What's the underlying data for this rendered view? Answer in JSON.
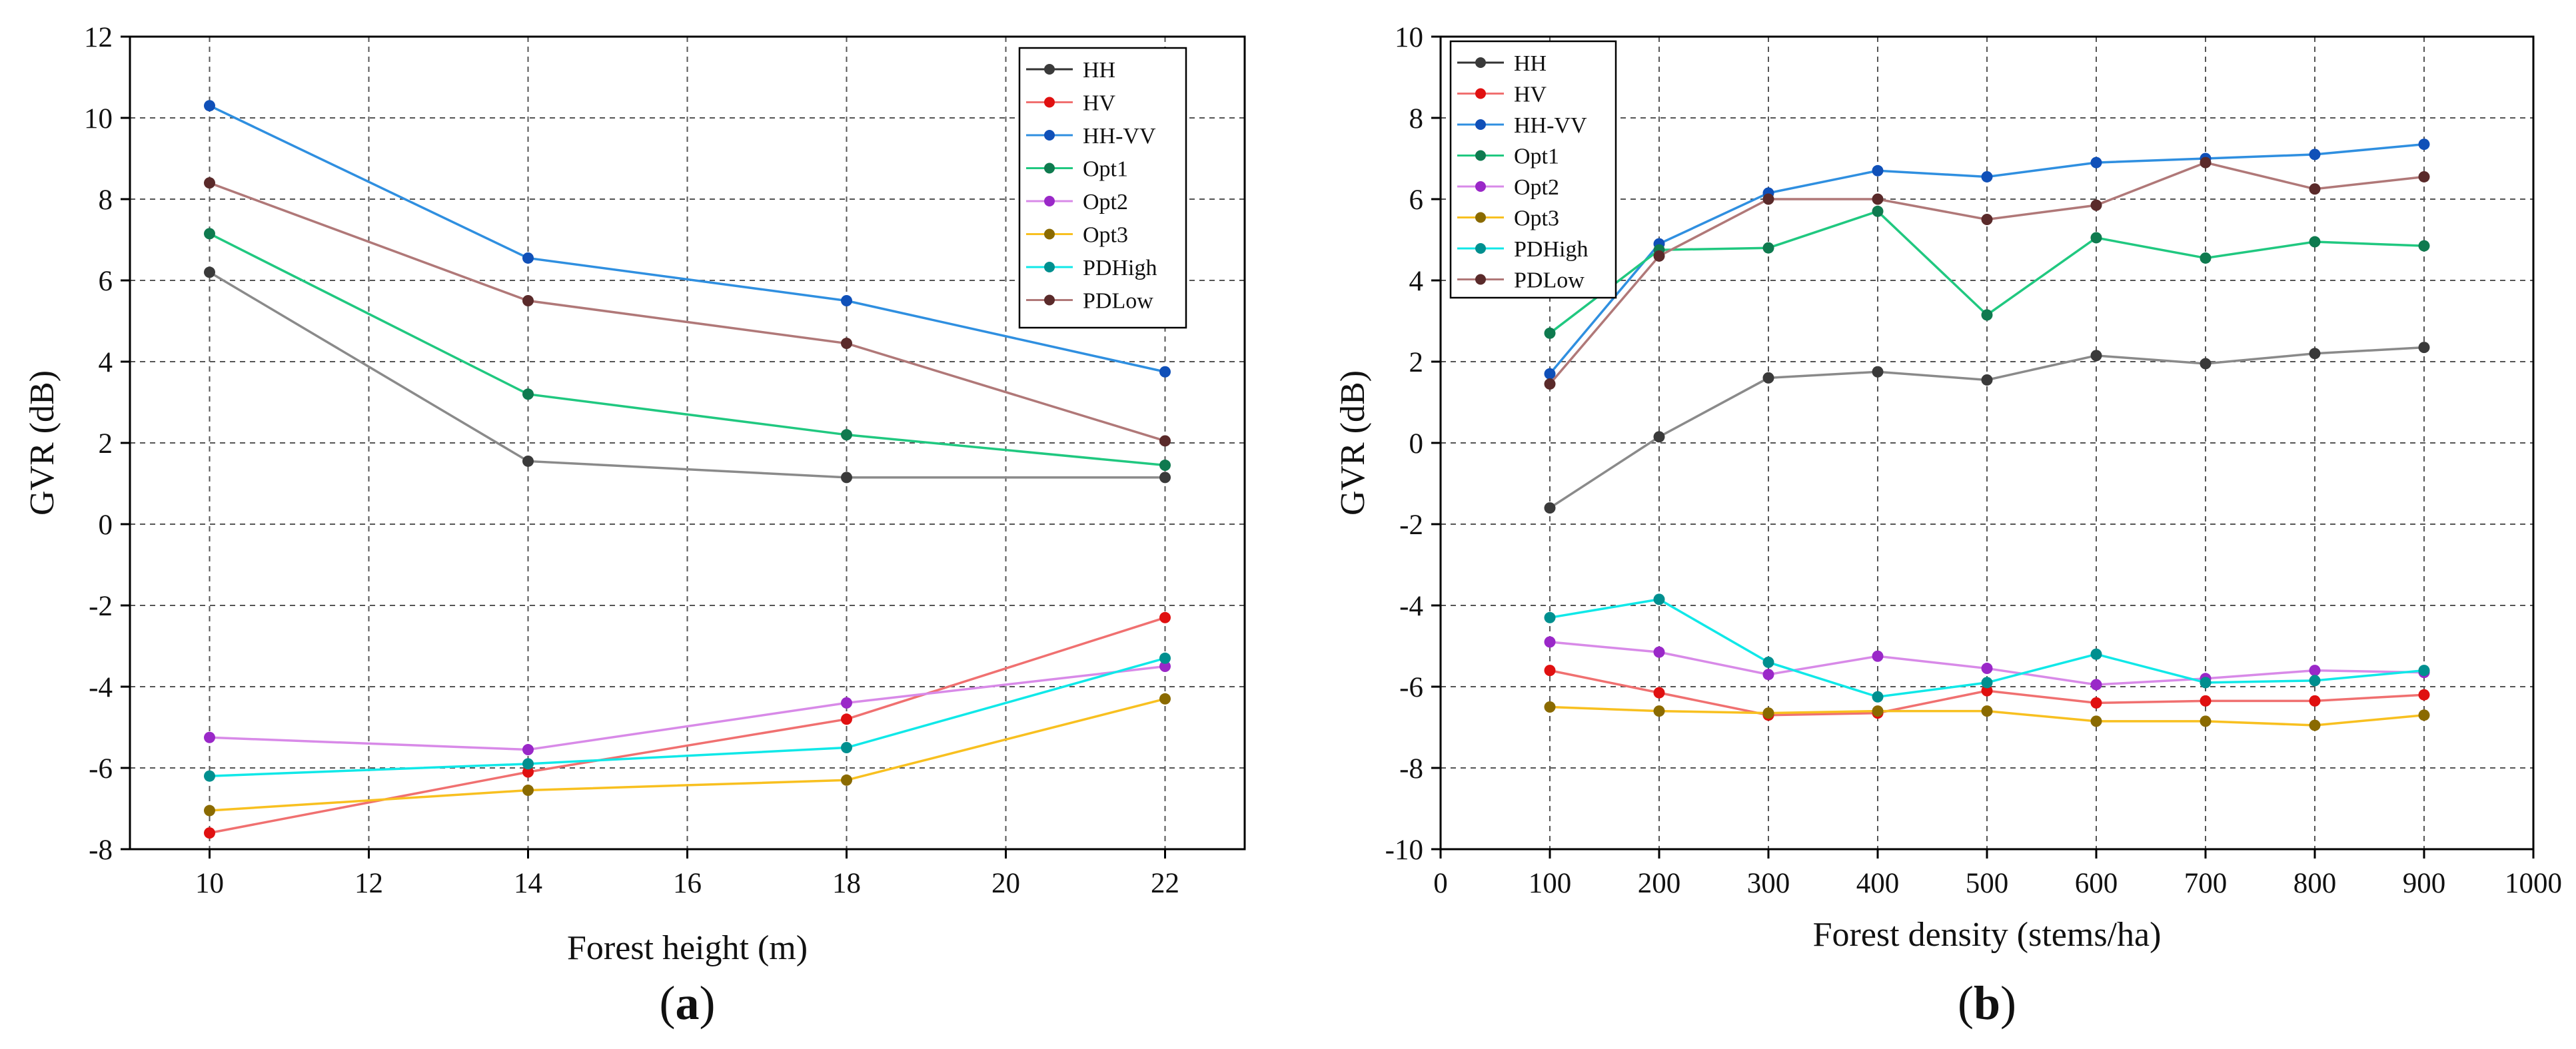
{
  "chart_data": [
    {
      "type": "line",
      "panel": "(a)",
      "panel_letter": "a",
      "xlabel": "Forest height (m)",
      "ylabel": "GVR (dB)",
      "xlim": [
        9,
        23
      ],
      "ylim": [
        -8,
        12
      ],
      "xticks": [
        10,
        12,
        14,
        16,
        18,
        20,
        22
      ],
      "yticks": [
        -8,
        -6,
        -4,
        -2,
        0,
        2,
        4,
        6,
        8,
        10,
        12
      ],
      "grid": true,
      "legend_position": "top-right",
      "x": [
        10,
        14,
        18,
        22
      ],
      "series": [
        {
          "name": "HH",
          "line_color": "#8a8a8a",
          "marker_color": "#3a3a3a",
          "values": [
            6.2,
            1.55,
            1.15,
            1.15
          ]
        },
        {
          "name": "HV",
          "line_color": "#f07070",
          "marker_color": "#e01010",
          "values": [
            -7.6,
            -6.1,
            -4.8,
            -2.3
          ]
        },
        {
          "name": "HH-VV",
          "line_color": "#2f8fe0",
          "marker_color": "#1050b8",
          "values": [
            10.3,
            6.55,
            5.5,
            3.75
          ]
        },
        {
          "name": "Opt1",
          "line_color": "#20c880",
          "marker_color": "#0f7a4f",
          "values": [
            7.15,
            3.2,
            2.2,
            1.45
          ]
        },
        {
          "name": "Opt2",
          "line_color": "#d88ae8",
          "marker_color": "#9a28c8",
          "values": [
            -5.25,
            -5.55,
            -4.4,
            -3.5
          ]
        },
        {
          "name": "Opt3",
          "line_color": "#f8c020",
          "marker_color": "#8a6a00",
          "values": [
            -7.05,
            -6.55,
            -6.3,
            -4.3
          ]
        },
        {
          "name": "PDHigh",
          "line_color": "#10e8e8",
          "marker_color": "#008f8f",
          "values": [
            -6.2,
            -5.9,
            -5.5,
            -3.3
          ]
        },
        {
          "name": "PDLow",
          "line_color": "#b07878",
          "marker_color": "#5a2a2a",
          "values": [
            8.4,
            5.5,
            4.45,
            2.05
          ]
        }
      ]
    },
    {
      "type": "line",
      "panel": "(b)",
      "panel_letter": "b",
      "xlabel": "Forest density (stems/ha)",
      "ylabel": "GVR (dB)",
      "xlim": [
        0,
        1000
      ],
      "ylim": [
        -10,
        10
      ],
      "xticks": [
        0,
        100,
        200,
        300,
        400,
        500,
        600,
        700,
        800,
        900,
        1000
      ],
      "yticks": [
        -10,
        -8,
        -6,
        -4,
        -2,
        0,
        2,
        4,
        6,
        8,
        10
      ],
      "grid": true,
      "legend_position": "top-left",
      "x": [
        100,
        200,
        300,
        400,
        500,
        600,
        700,
        800,
        900
      ],
      "series": [
        {
          "name": "HH",
          "line_color": "#8a8a8a",
          "marker_color": "#3a3a3a",
          "values": [
            -1.6,
            0.15,
            1.6,
            1.75,
            1.55,
            2.15,
            1.95,
            2.2,
            2.35
          ]
        },
        {
          "name": "HV",
          "line_color": "#f07070",
          "marker_color": "#e01010",
          "values": [
            -5.6,
            -6.15,
            -6.7,
            -6.65,
            -6.1,
            -6.4,
            -6.35,
            -6.35,
            -6.2
          ]
        },
        {
          "name": "HH-VV",
          "line_color": "#2f8fe0",
          "marker_color": "#1050b8",
          "values": [
            1.7,
            4.9,
            6.15,
            6.7,
            6.55,
            6.9,
            7.0,
            7.1,
            7.35
          ]
        },
        {
          "name": "Opt1",
          "line_color": "#20c880",
          "marker_color": "#0f7a4f",
          "values": [
            2.7,
            4.75,
            4.8,
            5.7,
            3.15,
            5.05,
            4.55,
            4.95,
            4.85
          ]
        },
        {
          "name": "Opt2",
          "line_color": "#d88ae8",
          "marker_color": "#9a28c8",
          "values": [
            -4.9,
            -5.15,
            -5.7,
            -5.25,
            -5.55,
            -5.95,
            -5.8,
            -5.6,
            -5.65
          ]
        },
        {
          "name": "Opt3",
          "line_color": "#f8c020",
          "marker_color": "#8a6a00",
          "values": [
            -6.5,
            -6.6,
            -6.65,
            -6.6,
            -6.6,
            -6.85,
            -6.85,
            -6.95,
            -6.7
          ]
        },
        {
          "name": "PDHigh",
          "line_color": "#10e8e8",
          "marker_color": "#008f8f",
          "values": [
            -4.3,
            -3.85,
            -5.4,
            -6.25,
            -5.9,
            -5.2,
            -5.9,
            -5.85,
            -5.6
          ]
        },
        {
          "name": "PDLow",
          "line_color": "#b07878",
          "marker_color": "#5a2a2a",
          "values": [
            1.45,
            4.6,
            6.0,
            6.0,
            5.5,
            5.85,
            6.9,
            6.25,
            6.55
          ]
        }
      ]
    }
  ]
}
